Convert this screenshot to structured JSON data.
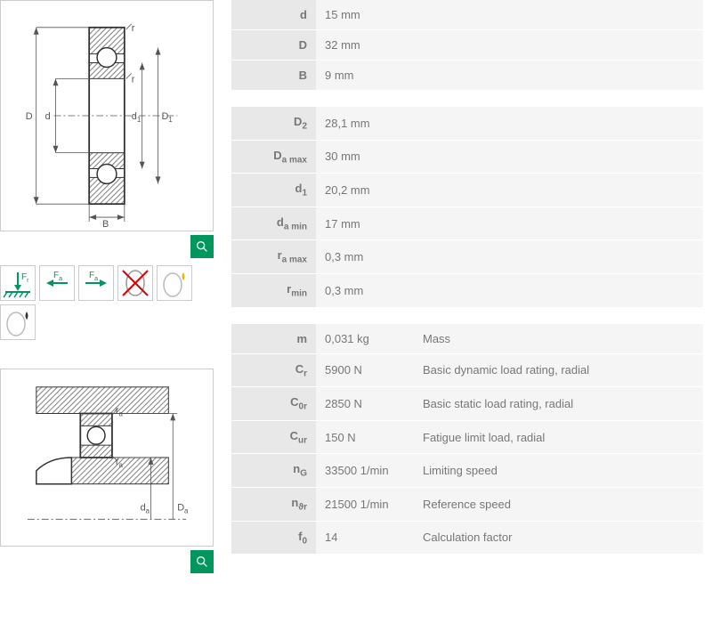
{
  "colors": {
    "accent": "#00965e",
    "label_bg": "#e8e8e8",
    "value_bg": "#f5f5f5",
    "text": "#777",
    "border": "#ccc"
  },
  "table1": {
    "rows": [
      {
        "sym": "d",
        "sub": "",
        "val": "15",
        "unit": "mm"
      },
      {
        "sym": "D",
        "sub": "",
        "val": "32",
        "unit": "mm"
      },
      {
        "sym": "B",
        "sub": "",
        "val": "9",
        "unit": "mm"
      }
    ]
  },
  "table2": {
    "rows": [
      {
        "sym": "D",
        "sub": "2",
        "val": "28,1",
        "unit": "mm"
      },
      {
        "sym": "D",
        "sub": "a max",
        "val": "30",
        "unit": "mm"
      },
      {
        "sym": "d",
        "sub": "1",
        "val": "20,2",
        "unit": "mm"
      },
      {
        "sym": "d",
        "sub": "a min",
        "val": "17",
        "unit": "mm"
      },
      {
        "sym": "r",
        "sub": "a max",
        "val": "0,3",
        "unit": "mm"
      },
      {
        "sym": "r",
        "sub": "min",
        "val": "0,3",
        "unit": "mm"
      }
    ]
  },
  "table3": {
    "rows": [
      {
        "sym": "m",
        "sub": "",
        "val": "0,031",
        "unit": "kg",
        "desc": "Mass"
      },
      {
        "sym": "C",
        "sub": "r",
        "val": "5900",
        "unit": "N",
        "desc": "Basic dynamic load rating, radial"
      },
      {
        "sym": "C",
        "sub": "0r",
        "val": "2850",
        "unit": "N",
        "desc": "Basic static load rating, radial"
      },
      {
        "sym": "C",
        "sub": "ur",
        "val": "150",
        "unit": "N",
        "desc": "Fatigue limit load, radial"
      },
      {
        "sym": "n",
        "sub": "G",
        "val": "33500",
        "unit": "1/min",
        "desc": "Limiting speed"
      },
      {
        "sym": "n",
        "sub": "ϑr",
        "val": "21500",
        "unit": "1/min",
        "desc": "Reference speed"
      },
      {
        "sym": "f",
        "sub": "0",
        "val": "14",
        "unit": "",
        "desc": "Calculation factor"
      }
    ]
  },
  "diagram1_labels": {
    "D": "D",
    "d": "d",
    "d1": "d",
    "d1s": "1",
    "D1": "D",
    "D1s": "1",
    "r": "r",
    "B": "B"
  },
  "diagram2_labels": {
    "ra": "r",
    "ras": "a",
    "da": "d",
    "das": "a",
    "Da": "D",
    "Das": "a"
  },
  "icons": {
    "fr": "F",
    "frs": "r",
    "fa": "F",
    "fas": "a"
  }
}
